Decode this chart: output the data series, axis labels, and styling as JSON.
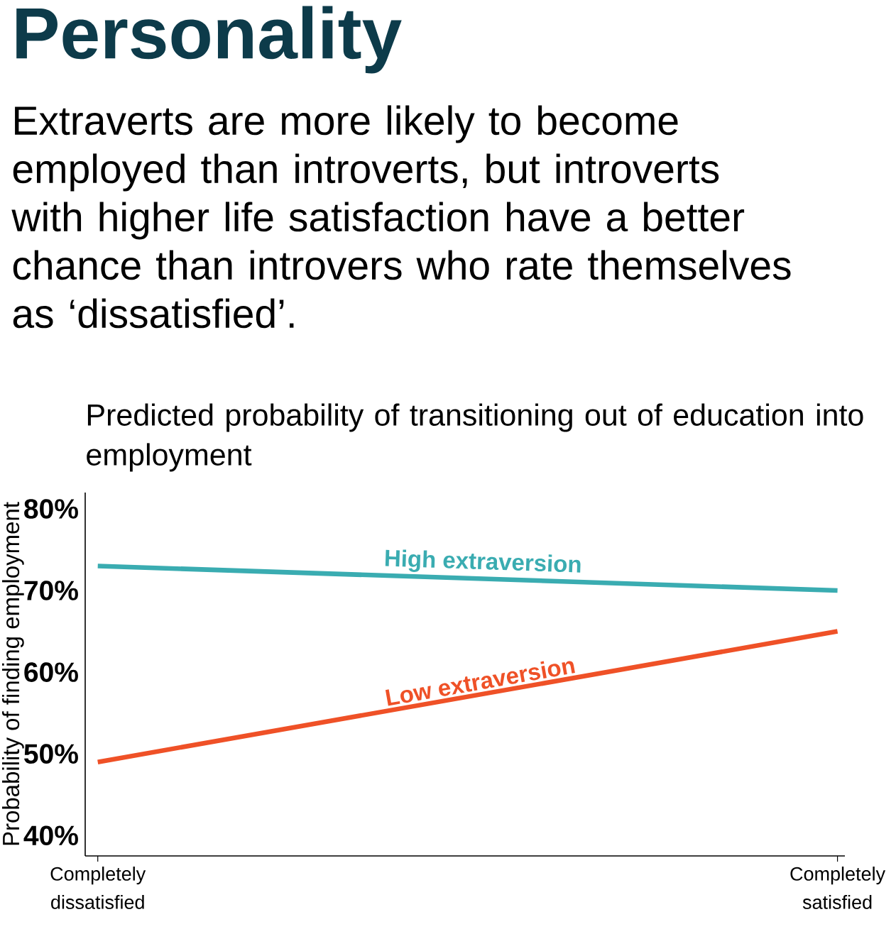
{
  "chart_data": {
    "type": "line",
    "title": "Personality",
    "subtitle": "Extraverts are more likely to become employed than introverts, but introverts with higher life satisfaction have a better chance than introvers who rate themselves as ‘dissatisfied’.",
    "annotations": [
      "Predicted probability of transitioning out of education into employment"
    ],
    "ylabel": "Probability of finding employment",
    "categories": [
      "Completely dissatisfied",
      "Completely satisfied"
    ],
    "series": [
      {
        "name": "High extraversion",
        "color": "#3aacb1",
        "values": [
          73,
          70
        ]
      },
      {
        "name": "Low extraversion",
        "color": "#ef5127",
        "values": [
          49,
          65
        ]
      }
    ],
    "ylim": [
      37.5,
      82
    ],
    "yticks": [
      {
        "value": 40,
        "label": "40%"
      },
      {
        "value": 50,
        "label": "50%"
      },
      {
        "value": 60,
        "label": "60%"
      },
      {
        "value": 70,
        "label": "70%"
      },
      {
        "value": 80,
        "label": "80%"
      }
    ],
    "marker": "none"
  }
}
